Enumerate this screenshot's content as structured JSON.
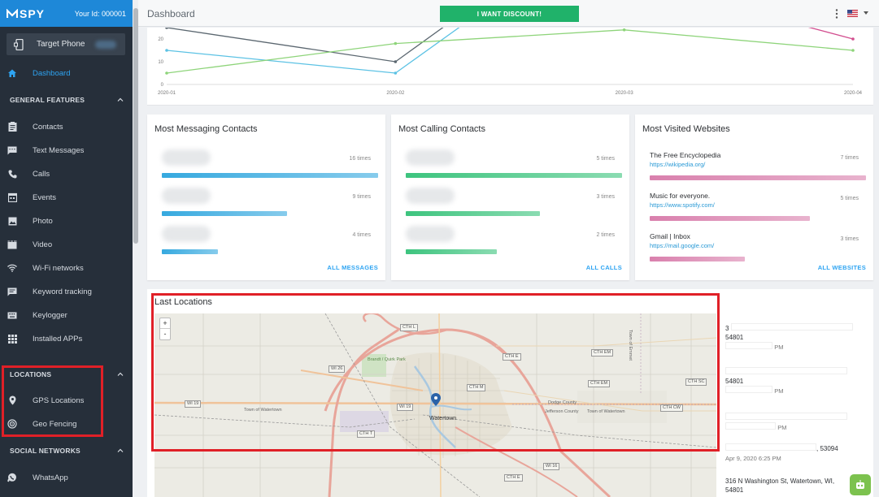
{
  "app": {
    "logo": "SPY",
    "user_id_label": "Your Id: 000001",
    "target_phone": "Target Phone"
  },
  "header": {
    "title": "Dashboard",
    "discount_button": "I WANT DISCOUNT!"
  },
  "sidebar": {
    "dashboard": "Dashboard",
    "general_features": "GENERAL FEATURES",
    "items": [
      {
        "label": "Contacts",
        "icon": "contacts-icon"
      },
      {
        "label": "Text Messages",
        "icon": "message-icon"
      },
      {
        "label": "Calls",
        "icon": "phone-icon"
      },
      {
        "label": "Events",
        "icon": "calendar-icon"
      },
      {
        "label": "Photo",
        "icon": "photo-icon"
      },
      {
        "label": "Video",
        "icon": "video-icon"
      },
      {
        "label": "Wi-Fi networks",
        "icon": "wifi-icon"
      },
      {
        "label": "Keyword tracking",
        "icon": "keyword-icon"
      },
      {
        "label": "Keylogger",
        "icon": "keyboard-icon"
      },
      {
        "label": "Installed APPs",
        "icon": "apps-icon"
      }
    ],
    "locations": "LOCATIONS",
    "location_items": [
      {
        "label": "GPS Locations",
        "icon": "pin-icon"
      },
      {
        "label": "Geo Fencing",
        "icon": "target-icon"
      }
    ],
    "social_networks": "SOCIAL NETWORKS",
    "social_items": [
      {
        "label": "WhatsApp",
        "icon": "whatsapp-icon"
      }
    ]
  },
  "chart_data": {
    "type": "line",
    "x": [
      "2020-01",
      "2020-02",
      "2020-03",
      "2020-04"
    ],
    "yticks": [
      0,
      10,
      20
    ],
    "ylim": [
      0,
      26
    ],
    "series": [
      {
        "color": "#5b6770",
        "values": [
          25,
          10,
          null,
          null
        ]
      },
      {
        "color": "#5cc2e4",
        "values": [
          15,
          5,
          null,
          null
        ]
      },
      {
        "color": "#8ed47a",
        "values": [
          5,
          18,
          24,
          15
        ]
      },
      {
        "color": "#d24e8f",
        "values": [
          null,
          null,
          null,
          20
        ]
      }
    ]
  },
  "cards": {
    "messaging": {
      "title": "Most Messaging Contacts",
      "rows": [
        {
          "count": "16 times",
          "fraction": 1.0
        },
        {
          "count": "9 times",
          "fraction": 0.58
        },
        {
          "count": "4 times",
          "fraction": 0.26
        }
      ],
      "more": "ALL MESSAGES",
      "color": "#36a9df"
    },
    "calling": {
      "title": "Most Calling Contacts",
      "rows": [
        {
          "count": "5 times",
          "fraction": 1.0
        },
        {
          "count": "3 times",
          "fraction": 0.62
        },
        {
          "count": "2 times",
          "fraction": 0.42
        }
      ],
      "more": "ALL CALLS",
      "color": "#3dc47e"
    },
    "websites": {
      "title": "Most Visited Websites",
      "rows": [
        {
          "name": "The Free Encyclopedia",
          "url": "https://wikipedia.org/",
          "count": "7 times",
          "fraction": 1.0
        },
        {
          "name": "Music for everyone.",
          "url": "https://www.spotify.com/",
          "count": "5 times",
          "fraction": 0.74
        },
        {
          "name": "Gmail | Inbox",
          "url": "https://mail.google.com/",
          "count": "3 times",
          "fraction": 0.44
        }
      ],
      "more": "ALL WEBSITES",
      "color": "#d980ad"
    }
  },
  "locations": {
    "title": "Last Locations",
    "zoom_in": "+",
    "zoom_out": "-",
    "map_labels": [
      "CTH L",
      "CTH E",
      "CTH EM",
      "CTH M",
      "CTH EM",
      "CTH SC",
      "CTH CW",
      "CTH T",
      "WI 26",
      "WI 19",
      "WI 19",
      "WI 16",
      "CTH E"
    ],
    "map_places": [
      "Watertown",
      "Jefferson County",
      "Dodge County",
      "Town of Watertown",
      "Town of Watertown",
      "Brandt / Quirk Park",
      "Town of Emmet"
    ],
    "entries": [
      {
        "line1": "3",
        "line2": "54801",
        "time": "PM"
      },
      {
        "line1": "",
        "line2": "54801",
        "time": "PM"
      },
      {
        "line1": "",
        "line2": "",
        "time": "PM"
      },
      {
        "line1": ", 53094",
        "line2": "",
        "time": "Apr 9, 2020 6:25 PM"
      },
      {
        "line1": "316 N Washington St, Watertown, WI,",
        "line2": "54801",
        "time": ""
      }
    ]
  }
}
